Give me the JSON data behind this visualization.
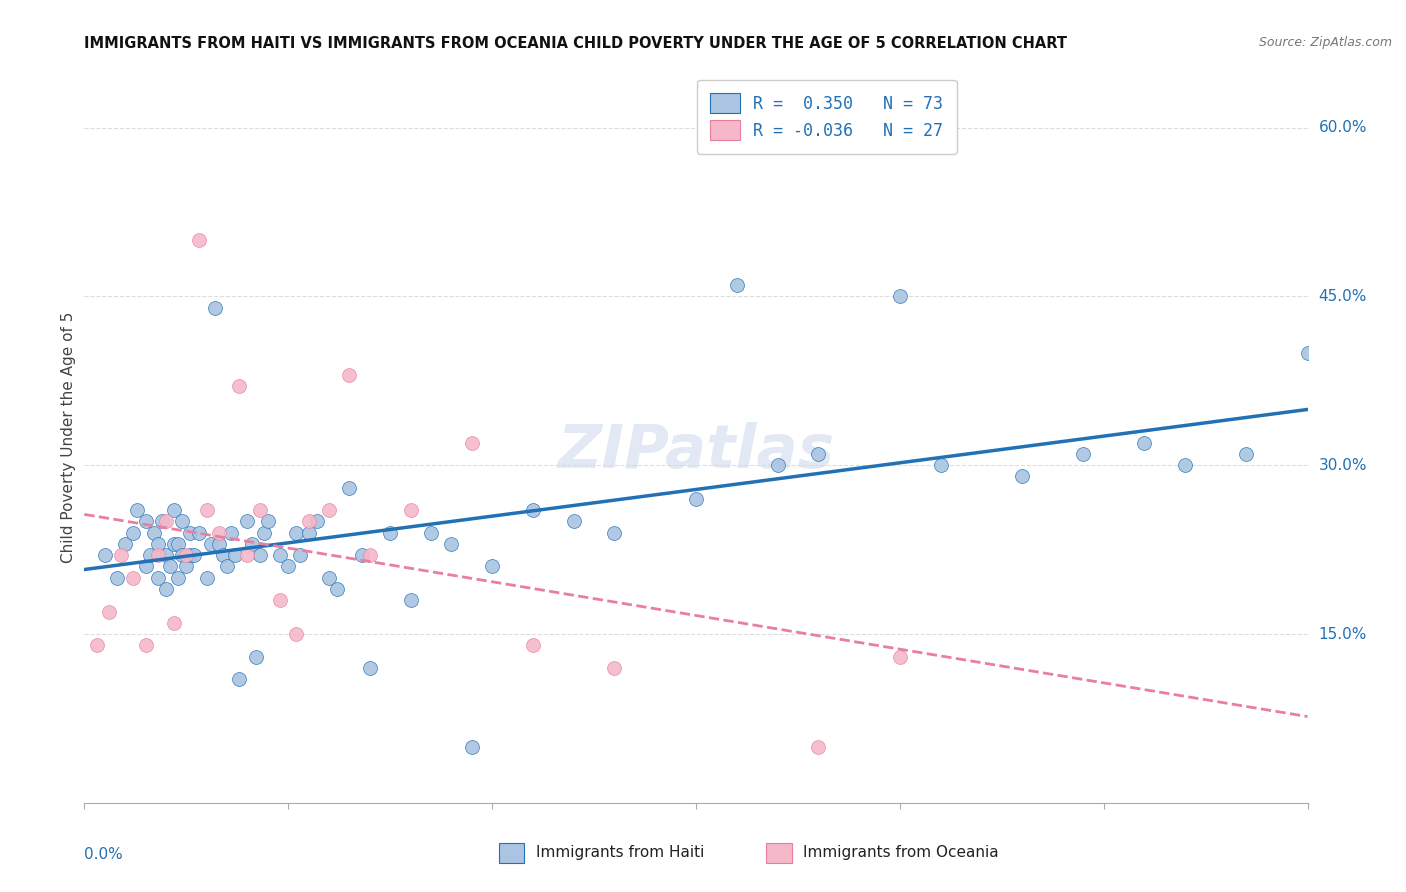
{
  "title": "IMMIGRANTS FROM HAITI VS IMMIGRANTS FROM OCEANIA CHILD POVERTY UNDER THE AGE OF 5 CORRELATION CHART",
  "source": "Source: ZipAtlas.com",
  "ylabel": "Child Poverty Under the Age of 5",
  "ytick_values": [
    0.15,
    0.3,
    0.45,
    0.6
  ],
  "xlim": [
    0.0,
    0.3
  ],
  "ylim": [
    0.0,
    0.65
  ],
  "haiti_color": "#aac4e2",
  "oceania_color": "#f4b8c8",
  "haiti_line_color": "#2271b5",
  "oceania_line_color": "#e87fa0",
  "haiti_scatter_x": [
    0.005,
    0.008,
    0.01,
    0.012,
    0.013,
    0.015,
    0.015,
    0.016,
    0.017,
    0.018,
    0.018,
    0.019,
    0.02,
    0.02,
    0.021,
    0.022,
    0.022,
    0.023,
    0.023,
    0.024,
    0.024,
    0.025,
    0.026,
    0.026,
    0.027,
    0.028,
    0.03,
    0.031,
    0.032,
    0.033,
    0.034,
    0.035,
    0.036,
    0.037,
    0.038,
    0.04,
    0.041,
    0.042,
    0.043,
    0.044,
    0.045,
    0.048,
    0.05,
    0.052,
    0.053,
    0.055,
    0.057,
    0.06,
    0.062,
    0.065,
    0.068,
    0.07,
    0.075,
    0.08,
    0.085,
    0.09,
    0.095,
    0.1,
    0.11,
    0.12,
    0.13,
    0.15,
    0.16,
    0.17,
    0.18,
    0.2,
    0.21,
    0.23,
    0.245,
    0.26,
    0.27,
    0.285,
    0.3
  ],
  "haiti_scatter_y": [
    0.22,
    0.2,
    0.23,
    0.24,
    0.26,
    0.21,
    0.25,
    0.22,
    0.24,
    0.2,
    0.23,
    0.25,
    0.19,
    0.22,
    0.21,
    0.23,
    0.26,
    0.2,
    0.23,
    0.22,
    0.25,
    0.21,
    0.22,
    0.24,
    0.22,
    0.24,
    0.2,
    0.23,
    0.44,
    0.23,
    0.22,
    0.21,
    0.24,
    0.22,
    0.11,
    0.25,
    0.23,
    0.13,
    0.22,
    0.24,
    0.25,
    0.22,
    0.21,
    0.24,
    0.22,
    0.24,
    0.25,
    0.2,
    0.19,
    0.28,
    0.22,
    0.12,
    0.24,
    0.18,
    0.24,
    0.23,
    0.05,
    0.21,
    0.26,
    0.25,
    0.24,
    0.27,
    0.46,
    0.3,
    0.31,
    0.45,
    0.3,
    0.29,
    0.31,
    0.32,
    0.3,
    0.31,
    0.4
  ],
  "oceania_scatter_x": [
    0.003,
    0.006,
    0.009,
    0.012,
    0.015,
    0.018,
    0.02,
    0.022,
    0.025,
    0.028,
    0.03,
    0.033,
    0.038,
    0.04,
    0.043,
    0.048,
    0.052,
    0.055,
    0.06,
    0.065,
    0.07,
    0.08,
    0.095,
    0.11,
    0.13,
    0.18,
    0.2
  ],
  "oceania_scatter_y": [
    0.14,
    0.17,
    0.22,
    0.2,
    0.14,
    0.22,
    0.25,
    0.16,
    0.22,
    0.5,
    0.26,
    0.24,
    0.37,
    0.22,
    0.26,
    0.18,
    0.15,
    0.25,
    0.26,
    0.38,
    0.22,
    0.26,
    0.32,
    0.14,
    0.12,
    0.05,
    0.13
  ],
  "background_color": "#ffffff",
  "grid_color": "#dddddd"
}
